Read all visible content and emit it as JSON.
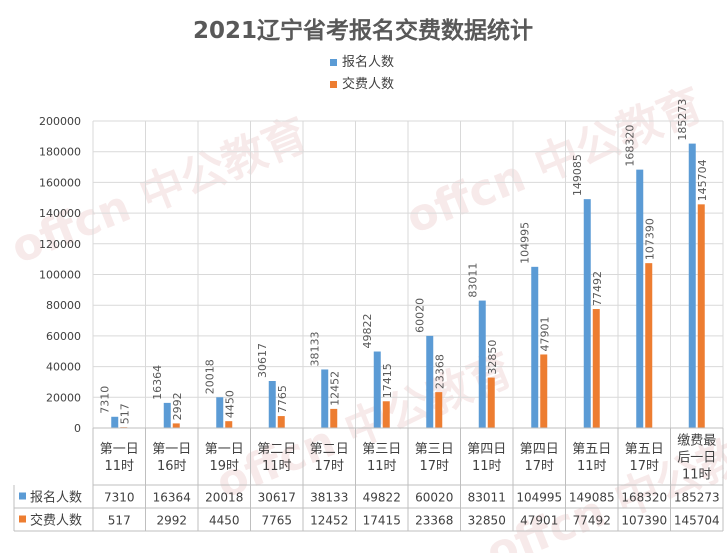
{
  "title": "2021辽宁省考报名交费数据统计",
  "watermark": "offcn 中公教育",
  "chart_data": {
    "type": "bar",
    "title": "2021辽宁省考报名交费数据统计",
    "categories": [
      [
        "第一日",
        "11时"
      ],
      [
        "第一日",
        "16时"
      ],
      [
        "第一日",
        "19时"
      ],
      [
        "第二日",
        "11时"
      ],
      [
        "第二日",
        "17时"
      ],
      [
        "第三日",
        "11时"
      ],
      [
        "第三日",
        "17时"
      ],
      [
        "第四日",
        "11时"
      ],
      [
        "第四日",
        "17时"
      ],
      [
        "第五日",
        "11时"
      ],
      [
        "第五日",
        "17时"
      ],
      [
        "缴费最",
        "后一日",
        "11时"
      ]
    ],
    "series": [
      {
        "name": "报名人数",
        "color": "#5b9bd5",
        "values": [
          7310,
          16364,
          20018,
          30617,
          38133,
          49822,
          60020,
          83011,
          104995,
          149085,
          168320,
          185273
        ]
      },
      {
        "name": "交费人数",
        "color": "#ed7d31",
        "values": [
          517,
          2992,
          4450,
          7765,
          12452,
          17415,
          23368,
          32850,
          47901,
          77492,
          107390,
          145704
        ]
      }
    ],
    "ylim": [
      0,
      200000
    ],
    "yticks": [
      0,
      20000,
      40000,
      60000,
      80000,
      100000,
      120000,
      140000,
      160000,
      180000,
      200000
    ],
    "grid": true,
    "legend": "top-center",
    "data_table": true
  }
}
